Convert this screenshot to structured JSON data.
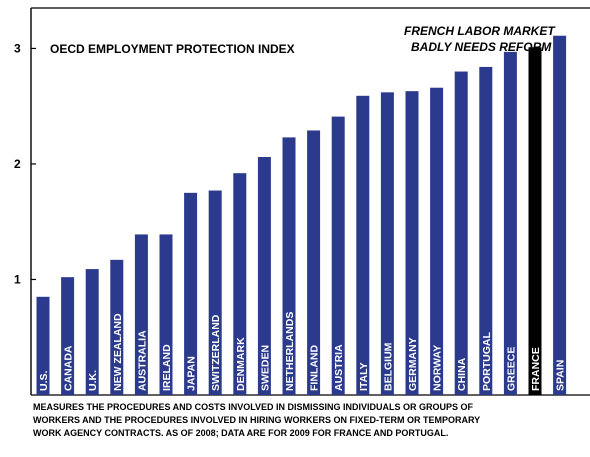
{
  "chart_data": {
    "type": "bar",
    "title": "OECD EMPLOYMENT PROTECTION INDEX",
    "annotation": [
      "FRENCH LABOR MARKET",
      "BADLY NEEDS REFORM"
    ],
    "categories": [
      "U.S.",
      "CANADA",
      "U.K.",
      "NEW ZEALAND",
      "AUSTRALIA",
      "IRELAND",
      "JAPAN",
      "SWITZERLAND",
      "DENMARK",
      "SWEDEN",
      "NETHERLANDS",
      "FINLAND",
      "AUSTRIA",
      "ITALY",
      "BELGIUM",
      "GERMANY",
      "NORWAY",
      "CHINA",
      "PORTUGAL",
      "GREECE",
      "FRANCE",
      "SPAIN"
    ],
    "values": [
      0.85,
      1.02,
      1.09,
      1.17,
      1.39,
      1.39,
      1.75,
      1.77,
      1.92,
      2.06,
      2.23,
      2.29,
      2.41,
      2.59,
      2.62,
      2.63,
      2.66,
      2.8,
      2.84,
      2.97,
      3.01,
      3.11
    ],
    "highlight": "FRANCE",
    "ylim": [
      0,
      3.35
    ],
    "yticks": [
      1,
      2,
      3
    ],
    "grid": false,
    "colors": {
      "bar": "#2b3a8c",
      "highlight": "#000000",
      "label": "#ffffff"
    }
  },
  "footnote": [
    "MEASURES THE PROCEDURES AND COSTS INVOLVED IN DISMISSING INDIVIDUALS OR GROUPS OF",
    "WORKERS AND THE PROCEDURES INVOLVED IN HIRING WORKERS ON FIXED-TERM OR TEMPORARY",
    "WORK AGENCY CONTRACTS. AS OF 2008; DATA ARE FOR 2009 FOR FRANCE AND PORTUGAL."
  ]
}
